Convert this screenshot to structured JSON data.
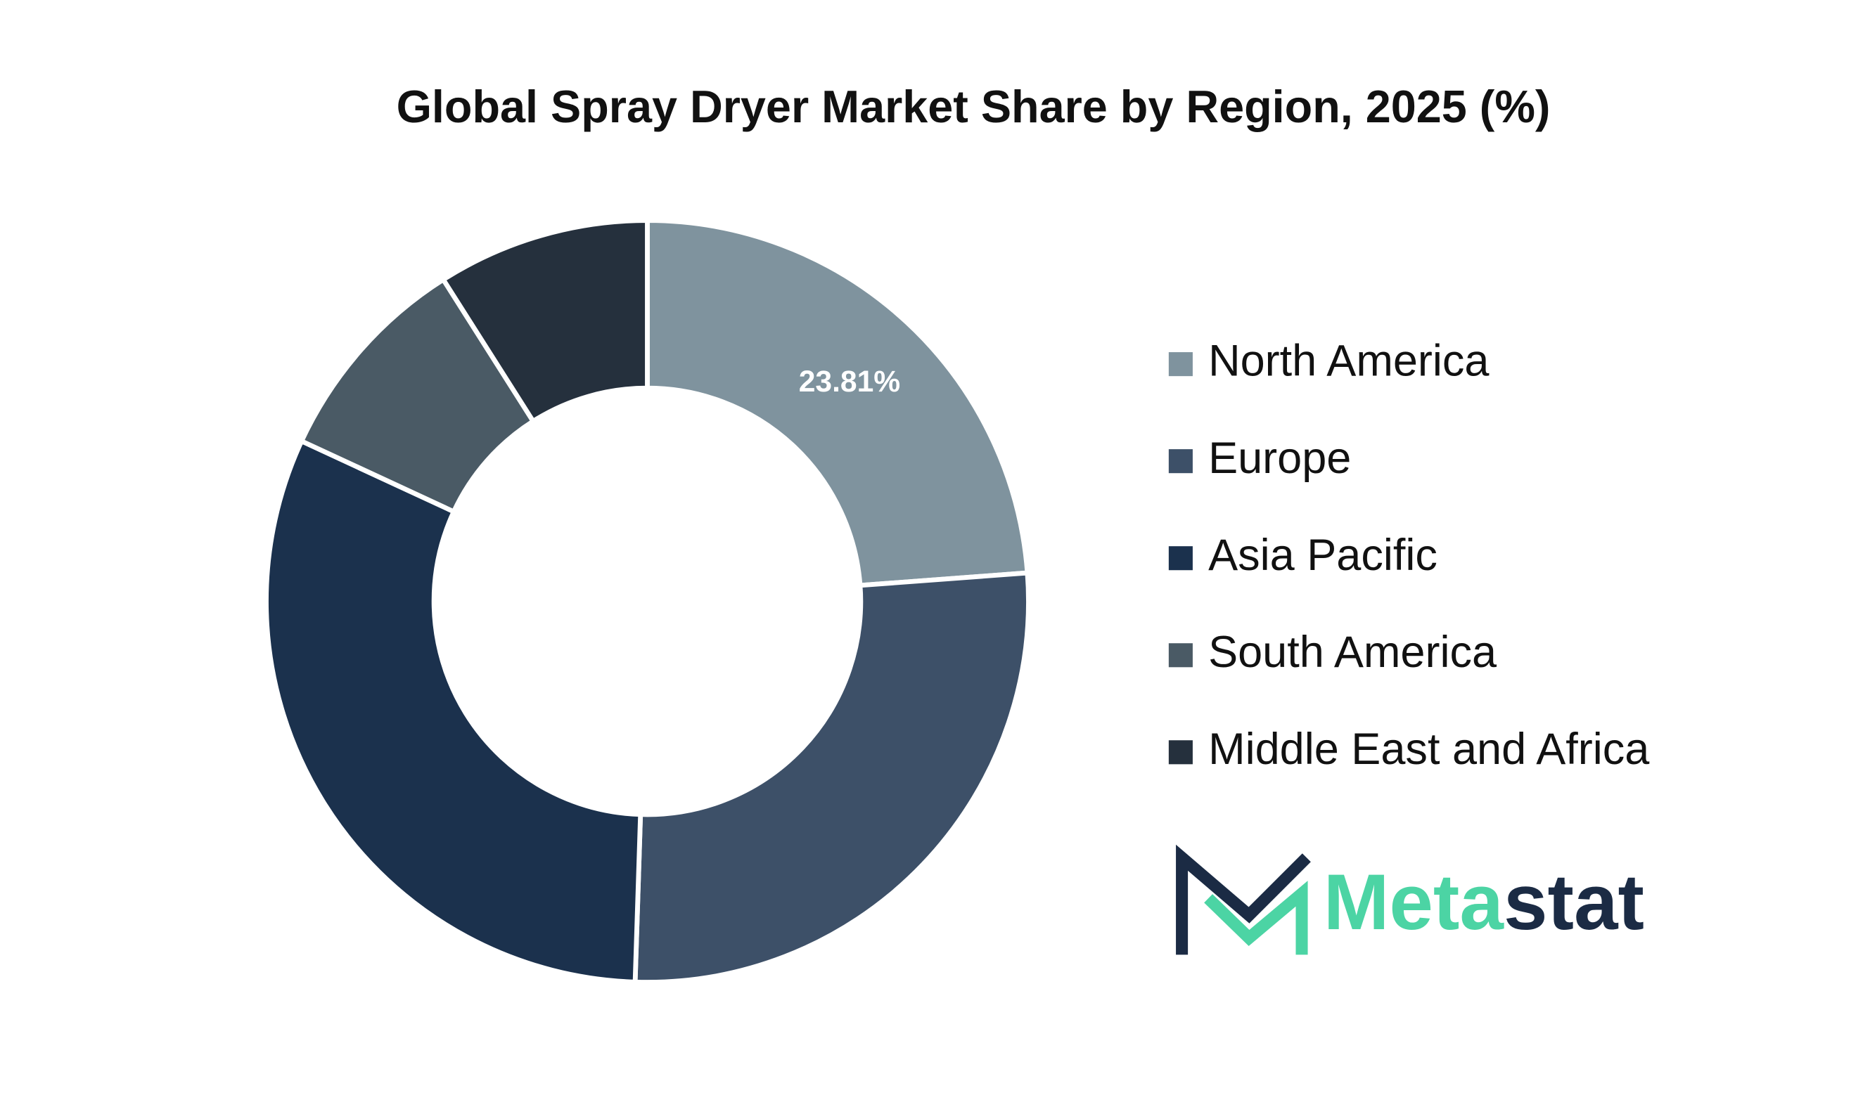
{
  "chart_data": {
    "type": "donut",
    "title": "Global Spray Dryer Market Share by Region, 2025 (%)",
    "categories": [
      "North America",
      "Europe",
      "Asia Pacific",
      "South America",
      "Middle East and Africa"
    ],
    "values": [
      23.81,
      26.7,
      31.4,
      9.1,
      8.99
    ],
    "value_labels": [
      "23.81%",
      null,
      null,
      null,
      null
    ],
    "colors": [
      "#7f939e",
      "#3d5068",
      "#1b314d",
      "#4a5a65",
      "#25303d"
    ],
    "legend": "right"
  },
  "logo": {
    "parts": [
      "Meta",
      "stat"
    ]
  }
}
